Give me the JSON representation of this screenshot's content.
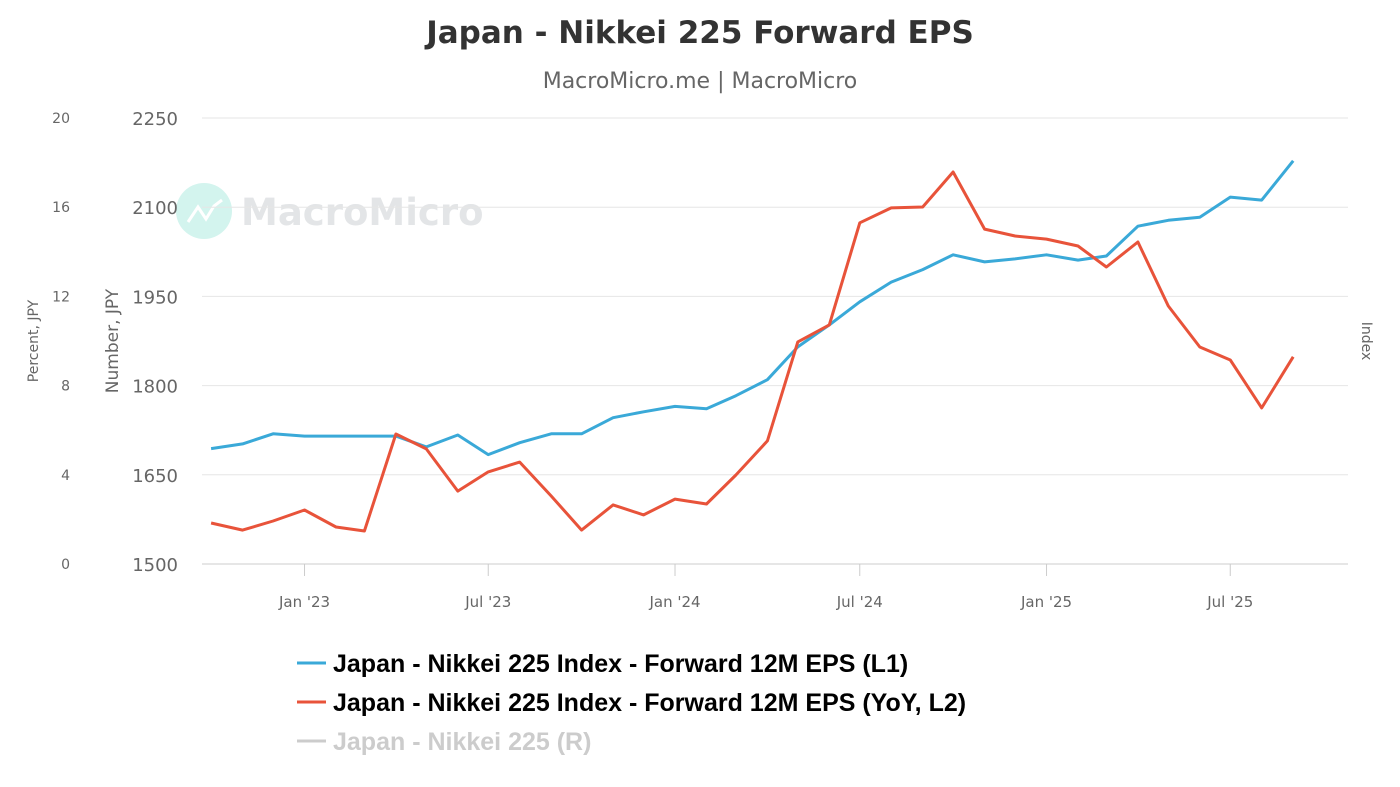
{
  "chart_data": {
    "type": "line",
    "title": "Japan - Nikkei 225 Forward EPS",
    "subtitle": "MacroMicro.me | MacroMicro",
    "watermark": "MacroMicro",
    "x": [
      "2022-10",
      "2022-11",
      "2022-12",
      "2023-01",
      "2023-02",
      "2023-03",
      "2023-04",
      "2023-05",
      "2023-06",
      "2023-07",
      "2023-08",
      "2023-09",
      "2023-10",
      "2023-11",
      "2023-12",
      "2024-01",
      "2024-02",
      "2024-03",
      "2024-04",
      "2024-05",
      "2024-06",
      "2024-07",
      "2024-08",
      "2024-09",
      "2024-10",
      "2024-11",
      "2024-12",
      "2025-01",
      "2025-02",
      "2025-03",
      "2025-04",
      "2025-05",
      "2025-06",
      "2025-07",
      "2025-08",
      "2025-09"
    ],
    "x_tick_labels": [
      {
        "label": "Jan '23",
        "at": "2023-01"
      },
      {
        "label": "Jul '23",
        "at": "2023-07"
      },
      {
        "label": "Jan '24",
        "at": "2024-01"
      },
      {
        "label": "Jul '24",
        "at": "2024-07"
      },
      {
        "label": "Jan '25",
        "at": "2025-01"
      },
      {
        "label": "Jul '25",
        "at": "2025-07"
      }
    ],
    "x_range": [
      "2022-09-22",
      "2025-10-25"
    ],
    "axes": {
      "left_outer": {
        "title": "Percent, JPY",
        "range": [
          0,
          20
        ],
        "ticks": [
          "0",
          "4",
          "8",
          "12",
          "16",
          "20"
        ]
      },
      "left_inner": {
        "title": "Number, JPY",
        "range": [
          1500,
          2250
        ],
        "ticks": [
          "1500",
          "1650",
          "1800",
          "1950",
          "2100",
          "2250"
        ]
      },
      "right": {
        "title": "Index"
      }
    },
    "grid": true,
    "legend_position": "bottom",
    "series": [
      {
        "name": "Japan - Nikkei 225 Index - Forward 12M EPS (L1)",
        "axis": "left_inner",
        "color": "#3aa9d8",
        "visible": true,
        "values": [
          1694,
          1702,
          1719,
          1715,
          1715,
          1715,
          1715,
          1697,
          1717,
          1684,
          1704,
          1719,
          1719,
          1746,
          1756,
          1765,
          1761,
          1783,
          1810,
          1865,
          1902,
          1941,
          1974,
          1995,
          2020,
          2008,
          2013,
          2020,
          2011,
          2018,
          2068,
          2078,
          2083,
          2117,
          2112,
          2178
        ]
      },
      {
        "name": "Japan - Nikkei 225 Index - Forward 12M EPS (YoY, L2)",
        "axis": "left_outer",
        "color": "#e8533a",
        "visible": true,
        "values": [
          1.84,
          1.52,
          1.93,
          2.42,
          1.66,
          1.48,
          5.83,
          5.16,
          3.27,
          4.13,
          4.57,
          3.05,
          1.52,
          2.65,
          2.2,
          2.91,
          2.69,
          3.99,
          5.52,
          9.96,
          10.72,
          15.3,
          15.97,
          16.01,
          17.58,
          15.02,
          14.71,
          14.57,
          14.26,
          13.32,
          14.44,
          11.57,
          9.73,
          9.15,
          7.0,
          9.29
        ]
      },
      {
        "name": "Japan - Nikkei 225 (R)",
        "axis": "right",
        "color": "#cccccc",
        "visible": false,
        "values": []
      }
    ]
  }
}
